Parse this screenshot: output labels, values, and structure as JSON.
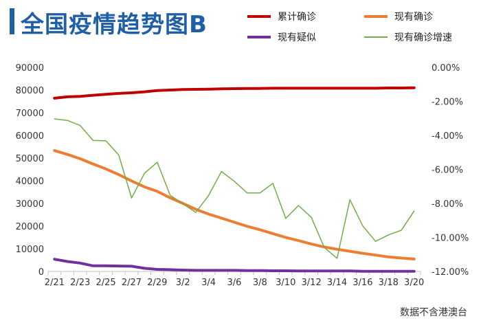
{
  "title": "全国疫情趋势图B",
  "source_note": "数据不含港澳台",
  "chart_data": {
    "type": "line",
    "title": "全国疫情趋势图B",
    "x": [
      "2/21",
      "2/22",
      "2/23",
      "2/24",
      "2/25",
      "2/26",
      "2/27",
      "2/28",
      "2/29",
      "3/1",
      "3/2",
      "3/3",
      "3/4",
      "3/5",
      "3/6",
      "3/7",
      "3/8",
      "3/9",
      "3/10",
      "3/11",
      "3/12",
      "3/13",
      "3/14",
      "3/15",
      "3/16",
      "3/17",
      "3/18",
      "3/19",
      "3/20"
    ],
    "x_tick_labels": [
      "2/21",
      "2/23",
      "2/25",
      "2/27",
      "2/29",
      "3/2",
      "3/4",
      "3/6",
      "3/8",
      "3/10",
      "3/12",
      "3/14",
      "3/16",
      "3/18",
      "3/20"
    ],
    "y_left": {
      "ylim": [
        0,
        90000
      ],
      "ticks": [
        "0",
        "10000",
        "20000",
        "30000",
        "40000",
        "50000",
        "60000",
        "70000",
        "80000",
        "90000"
      ]
    },
    "y_right": {
      "ylim": [
        -0.12,
        0
      ],
      "ticks": [
        "0.00%",
        "-2.00%",
        "-4.00%",
        "-6.00%",
        "-8.00%",
        "-10.00%",
        "-12.00%"
      ]
    },
    "legend_placement": "top-right",
    "grid": false,
    "series": [
      {
        "name": "累计确诊",
        "axis": "left",
        "color": "#c00000",
        "width": 4,
        "values": [
          76400,
          77000,
          77200,
          77700,
          78100,
          78500,
          78800,
          79200,
          79800,
          80000,
          80200,
          80300,
          80400,
          80500,
          80600,
          80700,
          80700,
          80800,
          80800,
          80800,
          80800,
          80800,
          80800,
          80800,
          80800,
          80800,
          80900,
          80900,
          81000
        ]
      },
      {
        "name": "现有确诊",
        "axis": "left",
        "color": "#ed7d31",
        "width": 4,
        "values": [
          53300,
          51600,
          49700,
          47400,
          45200,
          42700,
          39900,
          37300,
          35300,
          32500,
          30000,
          27400,
          25300,
          23500,
          21700,
          19900,
          18400,
          16700,
          15000,
          13600,
          12100,
          10800,
          9800,
          8900,
          8000,
          7200,
          6400,
          5900,
          5500
        ]
      },
      {
        "name": "现有疑似",
        "axis": "left",
        "color": "#7030a0",
        "width": 4,
        "values": [
          5400,
          4400,
          3700,
          2500,
          2500,
          2400,
          2300,
          1400,
          900,
          800,
          600,
          500,
          500,
          500,
          500,
          400,
          400,
          300,
          300,
          200,
          200,
          200,
          200,
          200,
          100,
          100,
          100,
          100,
          100
        ]
      },
      {
        "name": "现有确诊增速",
        "axis": "right",
        "color": "#70ad47",
        "width": 1.5,
        "values": [
          -0.0303,
          -0.0312,
          -0.0342,
          -0.043,
          -0.0432,
          -0.0515,
          -0.0768,
          -0.0623,
          -0.0558,
          -0.0752,
          -0.0802,
          -0.0853,
          -0.0753,
          -0.0612,
          -0.067,
          -0.0738,
          -0.0738,
          -0.0682,
          -0.0888,
          -0.0812,
          -0.0882,
          -0.1058,
          -0.1123,
          -0.0778,
          -0.0932,
          -0.1023,
          -0.0985,
          -0.0958,
          -0.0845
        ]
      }
    ]
  }
}
